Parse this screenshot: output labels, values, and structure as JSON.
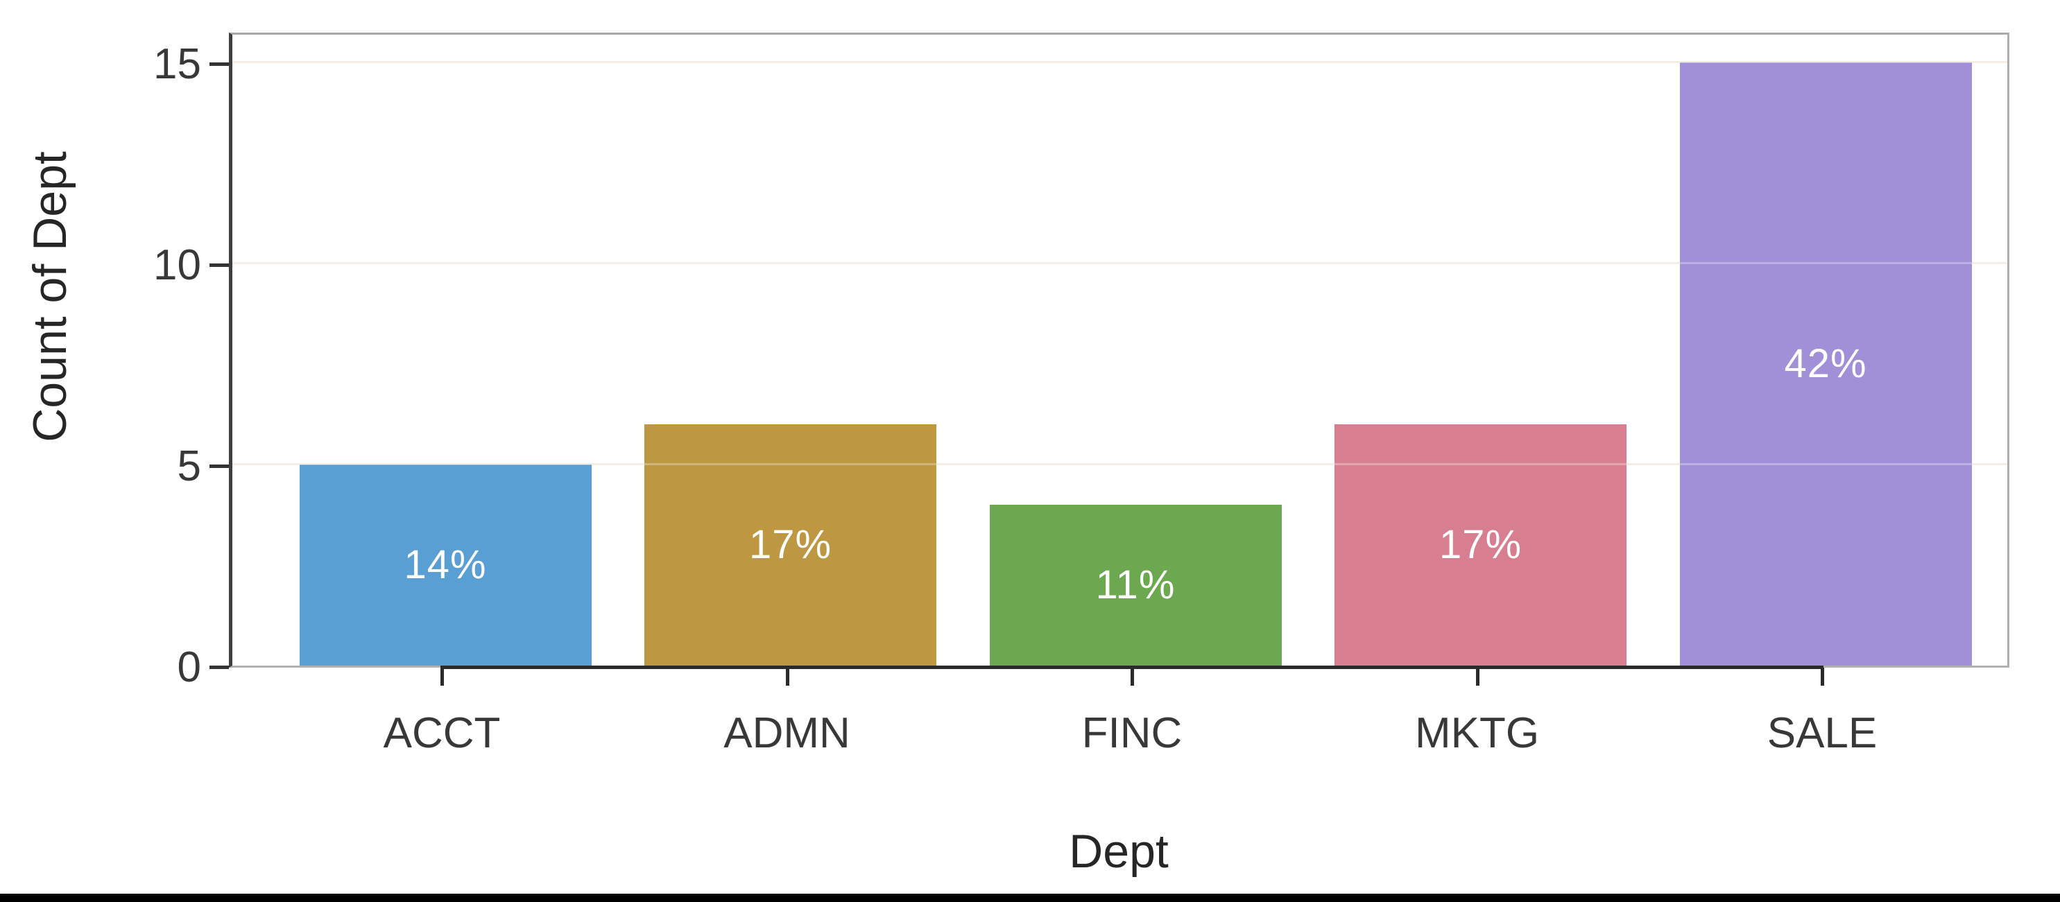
{
  "chart_data": {
    "type": "bar",
    "title": "",
    "categories": [
      "ACCT",
      "ADMN",
      "FINC",
      "MKTG",
      "SALE"
    ],
    "values": [
      5,
      6,
      4,
      6,
      15
    ],
    "bar_labels": [
      "14%",
      "17%",
      "11%",
      "17%",
      "42%"
    ],
    "bar_colors": [
      "#5a9fd4",
      "#bd9742",
      "#6ba84f",
      "#d77e90",
      "#a18fd8"
    ],
    "xlabel": "Dept",
    "ylabel": "Count of Dept",
    "yticks": [
      0,
      5,
      10,
      15
    ],
    "ylim": [
      0,
      15.8
    ],
    "grid": "horizontal-gridlines at 5, 10, 15",
    "legend": "none",
    "label_color": "#ffffff",
    "gridline_color": "#ece7da",
    "axis_line_color": "#3f3f3f",
    "frame_color": "#aeaeae",
    "tick_text_color": "#383838"
  }
}
